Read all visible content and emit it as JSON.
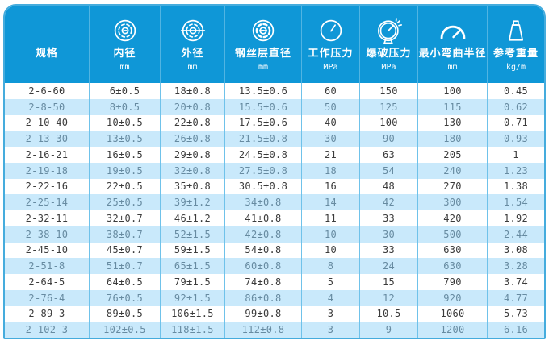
{
  "table": {
    "columns": [
      {
        "key": "spec",
        "label": "规格",
        "unit": "",
        "icon": ""
      },
      {
        "key": "inner-diameter",
        "label": "内径",
        "unit": "mm",
        "icon": "inner-diameter-icon"
      },
      {
        "key": "outer-diameter",
        "label": "外径",
        "unit": "mm",
        "icon": "outer-diameter-icon"
      },
      {
        "key": "wire-layer-diameter",
        "label": "钢丝层直径",
        "unit": "mm",
        "icon": "wire-layer-diameter-icon"
      },
      {
        "key": "working-pressure",
        "label": "工作压力",
        "unit": "MPa",
        "icon": "working-pressure-gauge-icon"
      },
      {
        "key": "burst-pressure",
        "label": "爆破压力",
        "unit": "MPa",
        "icon": "burst-pressure-gauge-icon"
      },
      {
        "key": "min-bend-radius",
        "label": "最小弯曲半径",
        "unit": "mm",
        "icon": "bend-radius-icon"
      },
      {
        "key": "ref-weight",
        "label": "参考重量",
        "unit": "kg/m",
        "icon": "weight-icon"
      }
    ],
    "rows": [
      [
        "2-6-60",
        "6±0.5",
        "18±0.8",
        "13.5±0.6",
        "60",
        "150",
        "100",
        "0.45"
      ],
      [
        "2-8-50",
        "8±0.5",
        "20±0.8",
        "15.5±0.6",
        "50",
        "125",
        "115",
        "0.62"
      ],
      [
        "2-10-40",
        "10±0.5",
        "22±0.8",
        "17.5±0.6",
        "40",
        "100",
        "130",
        "0.71"
      ],
      [
        "2-13-30",
        "13±0.5",
        "26±0.8",
        "21.5±0.8",
        "30",
        "90",
        "180",
        "0.93"
      ],
      [
        "2-16-21",
        "16±0.5",
        "29±0.8",
        "24.5±0.8",
        "21",
        "63",
        "205",
        "1"
      ],
      [
        "2-19-18",
        "19±0.5",
        "32±0.8",
        "27.5±0.8",
        "18",
        "54",
        "240",
        "1.23"
      ],
      [
        "2-22-16",
        "22±0.5",
        "35±0.8",
        "30.5±0.8",
        "16",
        "48",
        "270",
        "1.38"
      ],
      [
        "2-25-14",
        "25±0.5",
        "39±1.2",
        "34±0.8",
        "14",
        "42",
        "300",
        "1.54"
      ],
      [
        "2-32-11",
        "32±0.7",
        "46±1.2",
        "41±0.8",
        "11",
        "33",
        "420",
        "1.92"
      ],
      [
        "2-38-10",
        "38±0.7",
        "52±1.5",
        "42±0.8",
        "10",
        "30",
        "500",
        "2.44"
      ],
      [
        "2-45-10",
        "45±0.7",
        "59±1.5",
        "54±0.8",
        "10",
        "33",
        "630",
        "3.08"
      ],
      [
        "2-51-8",
        "51±0.7",
        "65±1.5",
        "60±0.8",
        "8",
        "24",
        "630",
        "3.28"
      ],
      [
        "2-64-5",
        "64±0.5",
        "79±1.5",
        "74±0.8",
        "5",
        "15",
        "790",
        "3.74"
      ],
      [
        "2-76-4",
        "76±0.5",
        "92±1.5",
        "86±0.8",
        "4",
        "12",
        "920",
        "4.77"
      ],
      [
        "2-89-3",
        "89±0.5",
        "106±1.5",
        "99±0.8",
        "3",
        "10.5",
        "1060",
        "5.73"
      ],
      [
        "2-102-3",
        "102±0.5",
        "118±1.5",
        "112±0.8",
        "3",
        "9",
        "1200",
        "6.16"
      ]
    ]
  },
  "colors": {
    "header_bg": "#0f97d7",
    "stripe_bg": "#c9e9fb",
    "row_bg": "#ffffff",
    "row_text": "#3b3b3b",
    "stripe_text": "#678ba1",
    "border_outer": "#45acdd",
    "cell_border": "#6fc2ea"
  }
}
